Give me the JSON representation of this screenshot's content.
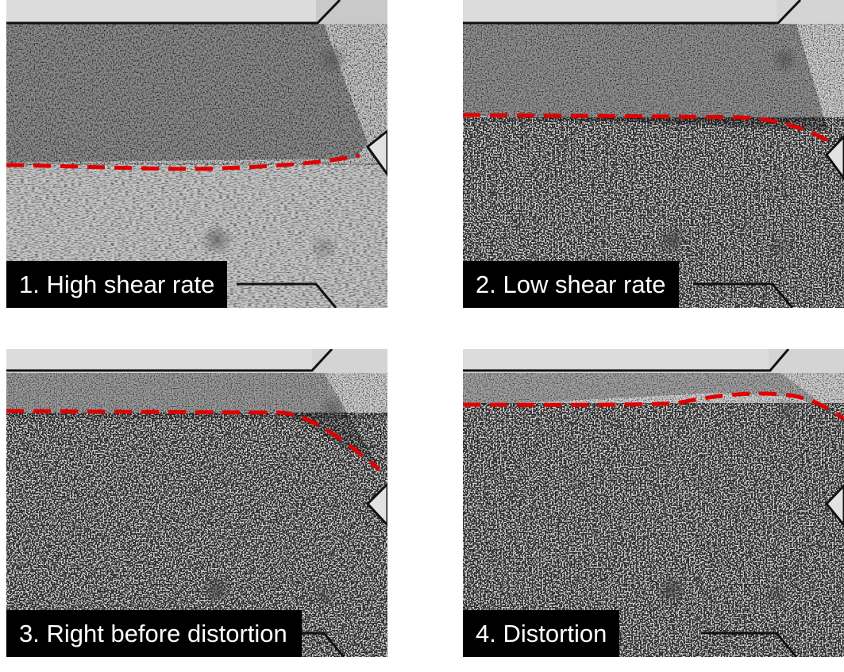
{
  "colors": {
    "boundary_line": "#e00000",
    "label_background": "#000000",
    "label_text": "#ffffff"
  },
  "panels": [
    {
      "label": "1. High shear rate"
    },
    {
      "label": "2. Low shear rate"
    },
    {
      "label": "3. Right before distortion"
    },
    {
      "label": "4. Distortion"
    }
  ]
}
